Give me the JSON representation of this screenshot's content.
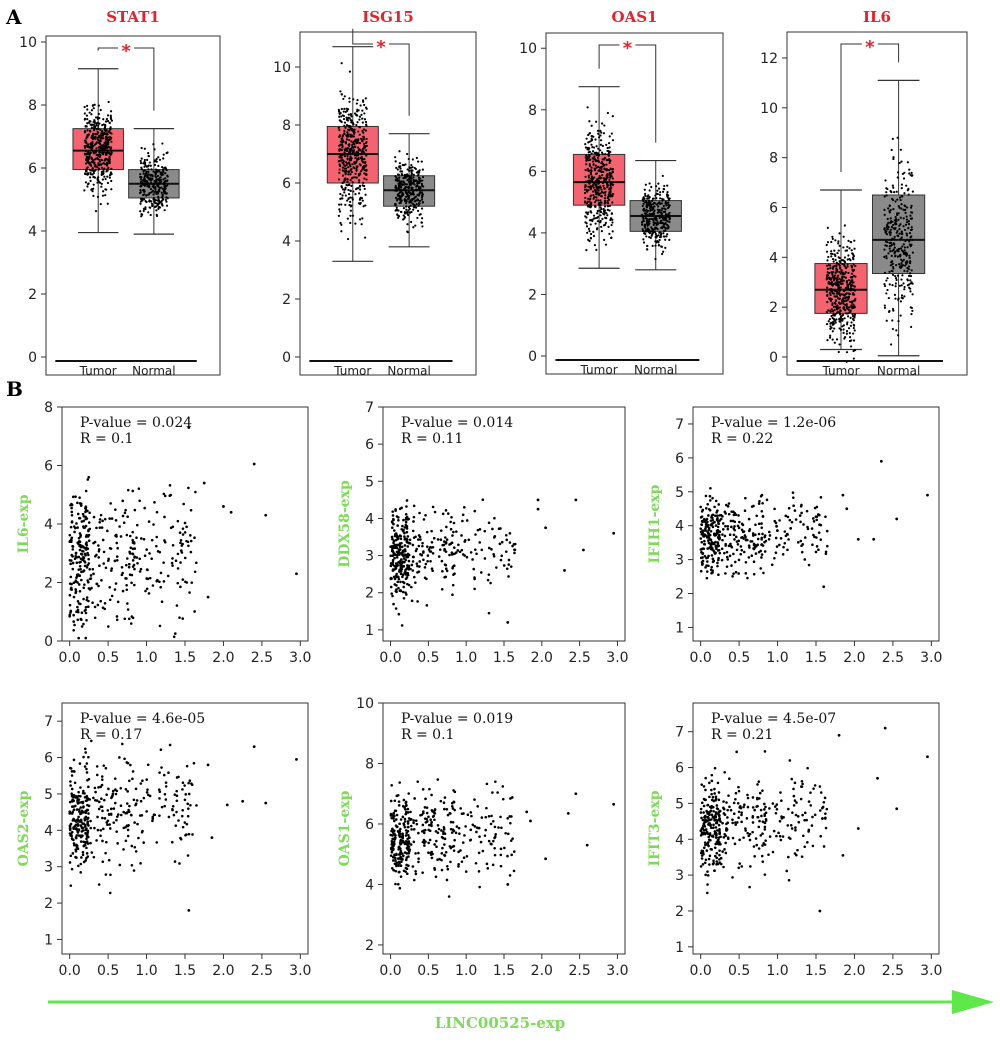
{
  "figure": {
    "panel_a_label": "A",
    "panel_b_label": "B",
    "common_xlabel": "LINC00525-exp",
    "colors": {
      "tumor_box": "#f4636f",
      "normal_box": "#8a8a8a",
      "significance": "#e8202a",
      "gene_title": "#e8202a",
      "scatter_ylabel": "#7ddb58",
      "arrow": "#5ee84a",
      "points": "#000000"
    }
  },
  "chart_data": [
    {
      "type": "box",
      "title": "STAT1",
      "significance": "*",
      "categories": [
        "Tumor",
        "Normal"
      ],
      "ylim": [
        0,
        10
      ],
      "yticks": [
        "0",
        "2",
        "4",
        "6",
        "8",
        "10"
      ],
      "boxes": [
        {
          "name": "Tumor",
          "min": 3.95,
          "q1": 5.95,
          "median": 6.55,
          "q3": 7.25,
          "max": 9.15,
          "n": 450
        },
        {
          "name": "Normal",
          "min": 3.9,
          "q1": 5.05,
          "median": 5.5,
          "q3": 5.95,
          "max": 7.25,
          "n": 320
        }
      ]
    },
    {
      "type": "box",
      "title": "ISG15",
      "significance": "*",
      "categories": [
        "Tumor",
        "Normal"
      ],
      "ylim": [
        0,
        11
      ],
      "yticks": [
        "0",
        "2",
        "4",
        "6",
        "8",
        "10"
      ],
      "boxes": [
        {
          "name": "Tumor",
          "min": 3.3,
          "q1": 6.0,
          "median": 7.0,
          "q3": 7.95,
          "max": 10.7,
          "n": 450
        },
        {
          "name": "Normal",
          "min": 3.8,
          "q1": 5.2,
          "median": 5.75,
          "q3": 6.25,
          "max": 7.7,
          "n": 320
        }
      ]
    },
    {
      "type": "box",
      "title": "OAS1",
      "significance": "*",
      "categories": [
        "Tumor",
        "Normal"
      ],
      "ylim": [
        0,
        10.3
      ],
      "yticks": [
        "0",
        "2",
        "4",
        "6",
        "8",
        "10"
      ],
      "boxes": [
        {
          "name": "Tumor",
          "min": 2.85,
          "q1": 4.9,
          "median": 5.65,
          "q3": 6.55,
          "max": 8.75,
          "n": 450
        },
        {
          "name": "Normal",
          "min": 2.8,
          "q1": 4.05,
          "median": 4.55,
          "q3": 5.05,
          "max": 6.35,
          "n": 320
        }
      ]
    },
    {
      "type": "box",
      "title": "IL6",
      "significance": "*",
      "categories": [
        "Tumor",
        "Normal"
      ],
      "ylim": [
        0,
        12.8
      ],
      "yticks": [
        "0",
        "2",
        "4",
        "6",
        "8",
        "10",
        "12"
      ],
      "boxes": [
        {
          "name": "Tumor",
          "min": 0.3,
          "q1": 1.75,
          "median": 2.7,
          "q3": 3.75,
          "max": 6.7,
          "n": 450
        },
        {
          "name": "Normal",
          "min": 0.05,
          "q1": 3.35,
          "median": 4.7,
          "q3": 6.5,
          "max": 11.1,
          "n": 320
        }
      ]
    },
    {
      "type": "scatter",
      "ylabel": "IL6-exp",
      "annotation": [
        "P-value = 0.024",
        "R = 0.1"
      ],
      "xlim": [
        -0.1,
        3.1
      ],
      "ylim": [
        0,
        8
      ],
      "xticks": [
        "0.0",
        "0.5",
        "1.0",
        "1.5",
        "2.0",
        "2.5",
        "3.0"
      ],
      "yticks": [
        "0",
        "2",
        "4",
        "6",
        "8"
      ],
      "n": 420,
      "y_center": 2.8,
      "y_spread": 1.6,
      "x_extra": [
        [
          1.55,
          7.3
        ],
        [
          1.75,
          5.4
        ],
        [
          1.8,
          1.5
        ],
        [
          2.0,
          4.6
        ],
        [
          2.1,
          4.4
        ],
        [
          2.4,
          6.05
        ],
        [
          2.55,
          4.3
        ],
        [
          2.95,
          2.3
        ]
      ]
    },
    {
      "type": "scatter",
      "ylabel": "DDX58-exp",
      "annotation": [
        "P-value = 0.014",
        "R = 0.11"
      ],
      "xlim": [
        -0.1,
        3.1
      ],
      "ylim": [
        0.7,
        7
      ],
      "xticks": [
        "0.0",
        "0.5",
        "1.0",
        "1.5",
        "2.0",
        "2.5",
        "3.0"
      ],
      "yticks": [
        "1",
        "2",
        "3",
        "4",
        "5",
        "6",
        "7"
      ],
      "n": 420,
      "y_center": 3.0,
      "y_spread": 0.85,
      "x_extra": [
        [
          1.55,
          1.2
        ],
        [
          1.95,
          4.5
        ],
        [
          1.95,
          4.25
        ],
        [
          2.05,
          3.75
        ],
        [
          2.3,
          2.6
        ],
        [
          2.45,
          4.5
        ],
        [
          2.55,
          3.15
        ],
        [
          2.95,
          3.6
        ]
      ]
    },
    {
      "type": "scatter",
      "ylabel": "IFIH1-exp",
      "annotation": [
        "P-value = 1.2e-06",
        "R = 0.22"
      ],
      "xlim": [
        -0.1,
        3.1
      ],
      "ylim": [
        0.6,
        7.5
      ],
      "xticks": [
        "0.0",
        "0.5",
        "1.0",
        "1.5",
        "2.0",
        "2.5",
        "3.0"
      ],
      "yticks": [
        "1",
        "2",
        "3",
        "4",
        "5",
        "6",
        "7"
      ],
      "n": 420,
      "y_center": 3.6,
      "y_spread": 0.75,
      "x_extra": [
        [
          1.6,
          2.2
        ],
        [
          1.85,
          4.9
        ],
        [
          1.9,
          4.5
        ],
        [
          2.05,
          3.6
        ],
        [
          2.25,
          3.6
        ],
        [
          2.35,
          5.9
        ],
        [
          2.55,
          4.2
        ],
        [
          2.95,
          4.9
        ]
      ]
    },
    {
      "type": "scatter",
      "ylabel": "OAS2-exp",
      "annotation": [
        "P-value = 4.6e-05",
        "R = 0.17"
      ],
      "xlim": [
        -0.1,
        3.1
      ],
      "ylim": [
        0.6,
        7.5
      ],
      "xticks": [
        "0.0",
        "0.5",
        "1.0",
        "1.5",
        "2.0",
        "2.5",
        "3.0"
      ],
      "yticks": [
        "1",
        "2",
        "3",
        "4",
        "5",
        "6",
        "7"
      ],
      "n": 420,
      "y_center": 4.3,
      "y_spread": 1.05,
      "x_extra": [
        [
          1.55,
          1.8
        ],
        [
          1.8,
          5.8
        ],
        [
          1.85,
          3.8
        ],
        [
          2.05,
          4.7
        ],
        [
          2.25,
          4.8
        ],
        [
          2.4,
          6.3
        ],
        [
          2.55,
          4.75
        ],
        [
          2.95,
          5.95
        ]
      ]
    },
    {
      "type": "scatter",
      "ylabel": "OAS1-exp",
      "annotation": [
        "P-value = 0.019",
        "R = 0.1"
      ],
      "xlim": [
        -0.1,
        3.1
      ],
      "ylim": [
        1.7,
        10
      ],
      "xticks": [
        "0.0",
        "0.5",
        "1.0",
        "1.5",
        "2.0",
        "2.5",
        "3.0"
      ],
      "yticks": [
        "2",
        "4",
        "6",
        "8",
        "10"
      ],
      "n": 420,
      "y_center": 5.6,
      "y_spread": 1.05,
      "x_extra": [
        [
          1.55,
          4.0
        ],
        [
          1.8,
          6.4
        ],
        [
          1.85,
          6.1
        ],
        [
          2.05,
          4.85
        ],
        [
          2.35,
          6.35
        ],
        [
          2.45,
          7.0
        ],
        [
          2.6,
          5.3
        ],
        [
          2.95,
          6.65
        ]
      ]
    },
    {
      "type": "scatter",
      "ylabel": "IFIT3-exp",
      "annotation": [
        "P-value = 4.5e-07",
        "R = 0.21"
      ],
      "xlim": [
        -0.1,
        3.1
      ],
      "ylim": [
        0.8,
        7.8
      ],
      "xticks": [
        "0.0",
        "0.5",
        "1.0",
        "1.5",
        "2.0",
        "2.5",
        "3.0"
      ],
      "yticks": [
        "1",
        "2",
        "3",
        "4",
        "5",
        "6",
        "7"
      ],
      "n": 420,
      "y_center": 4.3,
      "y_spread": 0.95,
      "x_extra": [
        [
          1.55,
          2.0
        ],
        [
          1.8,
          6.9
        ],
        [
          1.85,
          3.55
        ],
        [
          2.05,
          4.3
        ],
        [
          2.3,
          5.7
        ],
        [
          2.4,
          7.1
        ],
        [
          2.55,
          4.85
        ],
        [
          2.95,
          6.3
        ]
      ]
    }
  ]
}
